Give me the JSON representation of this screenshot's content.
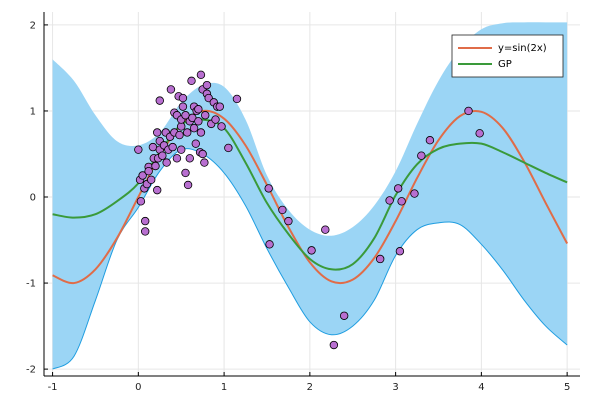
{
  "chart_data": {
    "type": "line",
    "title": "",
    "xlabel": "",
    "ylabel": "",
    "xlim": [
      -1.1,
      5.15
    ],
    "ylim": [
      -2.08,
      2.15
    ],
    "xticks": [
      -1,
      0,
      1,
      2,
      3,
      4,
      5
    ],
    "yticks": [
      -2,
      -1,
      0,
      1,
      2
    ],
    "xtick_labels": [
      "-1",
      "0",
      "1",
      "2",
      "3",
      "4",
      "5"
    ],
    "ytick_labels": [
      "-2",
      "-1",
      "0",
      "1",
      "2"
    ],
    "grid": true,
    "legend_position": "top-right",
    "colors": {
      "band_fill": "#9bd5f5",
      "band_edge": "#1f9de0",
      "true_function": "#e06c48",
      "gp_mean": "#3a9a3a",
      "points": "#b86fd0",
      "grid": "#e6e6e6",
      "axis": "#000000"
    },
    "series": [
      {
        "name": "y=sin(2x)",
        "kind": "line",
        "x": [
          -1.0,
          -0.75,
          -0.5,
          -0.25,
          0.0,
          0.25,
          0.5,
          0.75,
          1.0,
          1.25,
          1.5,
          1.75,
          2.0,
          2.25,
          2.5,
          2.75,
          3.0,
          3.25,
          3.5,
          3.75,
          4.0,
          4.25,
          4.5,
          4.75,
          5.0
        ],
        "y": [
          -0.91,
          -1.0,
          -0.84,
          -0.48,
          0.0,
          0.48,
          0.84,
          1.0,
          0.91,
          0.6,
          0.14,
          -0.35,
          -0.76,
          -0.98,
          -0.96,
          -0.71,
          -0.28,
          0.22,
          0.66,
          0.94,
          0.99,
          0.8,
          0.41,
          -0.07,
          -0.54
        ]
      },
      {
        "name": "GP",
        "kind": "line",
        "x": [
          -1.0,
          -0.75,
          -0.5,
          -0.25,
          0.0,
          0.25,
          0.5,
          0.75,
          1.0,
          1.25,
          1.5,
          1.75,
          2.0,
          2.25,
          2.5,
          2.75,
          3.0,
          3.25,
          3.5,
          3.75,
          4.0,
          4.25,
          4.5,
          4.75,
          5.0
        ],
        "y": [
          -0.2,
          -0.24,
          -0.2,
          -0.05,
          0.16,
          0.52,
          0.84,
          0.9,
          0.8,
          0.4,
          -0.07,
          -0.43,
          -0.72,
          -0.84,
          -0.78,
          -0.48,
          0.02,
          0.38,
          0.56,
          0.62,
          0.62,
          0.52,
          0.4,
          0.28,
          0.17
        ]
      },
      {
        "name": "upper_band",
        "kind": "band_upper",
        "x": [
          -1.0,
          -0.75,
          -0.5,
          -0.25,
          0.0,
          0.25,
          0.5,
          0.75,
          1.0,
          1.25,
          1.5,
          1.75,
          2.0,
          2.25,
          2.5,
          2.75,
          3.0,
          3.25,
          3.5,
          3.75,
          4.0,
          4.25,
          4.5,
          4.75,
          5.0
        ],
        "y": [
          1.6,
          1.35,
          0.95,
          0.65,
          0.6,
          0.75,
          1.1,
          1.3,
          1.28,
          0.9,
          0.25,
          -0.15,
          -0.38,
          -0.45,
          -0.35,
          -0.1,
          0.3,
          0.85,
          1.35,
          1.72,
          1.95,
          2.02,
          2.03,
          2.03,
          2.03
        ]
      },
      {
        "name": "lower_band",
        "kind": "band_lower",
        "x": [
          -1.0,
          -0.75,
          -0.5,
          -0.25,
          0.0,
          0.25,
          0.5,
          0.75,
          1.0,
          1.25,
          1.5,
          1.75,
          2.0,
          2.25,
          2.5,
          2.75,
          3.0,
          3.25,
          3.5,
          3.75,
          4.0,
          4.25,
          4.5,
          4.75,
          5.0
        ],
        "y": [
          -2.0,
          -1.85,
          -1.2,
          -0.5,
          -0.12,
          0.3,
          0.55,
          0.5,
          0.28,
          -0.1,
          -0.6,
          -1.05,
          -1.45,
          -1.6,
          -1.5,
          -1.2,
          -0.68,
          -0.38,
          -0.3,
          -0.32,
          -0.55,
          -0.85,
          -1.2,
          -1.5,
          -1.72
        ]
      }
    ],
    "scatter": {
      "name": "data",
      "points": [
        [
          0.0,
          0.55
        ],
        [
          0.02,
          0.2
        ],
        [
          0.03,
          -0.05
        ],
        [
          0.05,
          0.25
        ],
        [
          0.07,
          0.1
        ],
        [
          0.08,
          -0.28
        ],
        [
          0.08,
          -0.4
        ],
        [
          0.1,
          0.15
        ],
        [
          0.12,
          0.35
        ],
        [
          0.12,
          0.3
        ],
        [
          0.15,
          0.2
        ],
        [
          0.17,
          0.58
        ],
        [
          0.18,
          0.45
        ],
        [
          0.2,
          0.36
        ],
        [
          0.22,
          0.08
        ],
        [
          0.22,
          0.75
        ],
        [
          0.23,
          0.45
        ],
        [
          0.25,
          0.65
        ],
        [
          0.25,
          0.55
        ],
        [
          0.25,
          1.12
        ],
        [
          0.28,
          0.48
        ],
        [
          0.3,
          0.6
        ],
        [
          0.32,
          0.75
        ],
        [
          0.33,
          0.4
        ],
        [
          0.35,
          0.55
        ],
        [
          0.37,
          0.7
        ],
        [
          0.38,
          1.25
        ],
        [
          0.4,
          0.58
        ],
        [
          0.42,
          0.75
        ],
        [
          0.42,
          0.98
        ],
        [
          0.45,
          0.45
        ],
        [
          0.45,
          0.95
        ],
        [
          0.47,
          1.17
        ],
        [
          0.48,
          0.72
        ],
        [
          0.5,
          0.55
        ],
        [
          0.5,
          0.82
        ],
        [
          0.5,
          0.9
        ],
        [
          0.52,
          1.05
        ],
        [
          0.52,
          1.15
        ],
        [
          0.55,
          0.95
        ],
        [
          0.55,
          0.28
        ],
        [
          0.57,
          0.75
        ],
        [
          0.58,
          0.14
        ],
        [
          0.6,
          0.45
        ],
        [
          0.6,
          0.88
        ],
        [
          0.62,
          1.35
        ],
        [
          0.63,
          0.92
        ],
        [
          0.65,
          1.05
        ],
        [
          0.65,
          0.8
        ],
        [
          0.67,
          0.62
        ],
        [
          0.68,
          1.0
        ],
        [
          0.7,
          1.02
        ],
        [
          0.7,
          0.88
        ],
        [
          0.72,
          0.52
        ],
        [
          0.73,
          0.75
        ],
        [
          0.73,
          1.42
        ],
        [
          0.75,
          0.5
        ],
        [
          0.75,
          1.25
        ],
        [
          0.77,
          0.4
        ],
        [
          0.78,
          0.95
        ],
        [
          0.8,
          1.2
        ],
        [
          0.8,
          1.3
        ],
        [
          0.82,
          1.15
        ],
        [
          0.85,
          0.85
        ],
        [
          0.88,
          1.1
        ],
        [
          0.9,
          0.9
        ],
        [
          0.92,
          1.05
        ],
        [
          0.95,
          1.05
        ],
        [
          0.97,
          0.82
        ],
        [
          1.05,
          0.57
        ],
        [
          1.15,
          1.14
        ],
        [
          1.52,
          0.1
        ],
        [
          1.53,
          -0.55
        ],
        [
          1.68,
          -0.15
        ],
        [
          1.75,
          -0.28
        ],
        [
          2.02,
          -0.62
        ],
        [
          2.18,
          -0.38
        ],
        [
          2.28,
          -1.72
        ],
        [
          2.4,
          -1.38
        ],
        [
          2.82,
          -0.72
        ],
        [
          2.93,
          -0.04
        ],
        [
          3.03,
          0.1
        ],
        [
          3.05,
          -0.63
        ],
        [
          3.07,
          -0.05
        ],
        [
          3.22,
          0.04
        ],
        [
          3.3,
          0.48
        ],
        [
          3.4,
          0.66
        ],
        [
          3.85,
          1.0
        ],
        [
          3.98,
          0.74
        ]
      ]
    },
    "legend": [
      {
        "label": "y=sin(2x)",
        "color": "#e06c48"
      },
      {
        "label": "GP",
        "color": "#3a9a3a"
      }
    ]
  }
}
